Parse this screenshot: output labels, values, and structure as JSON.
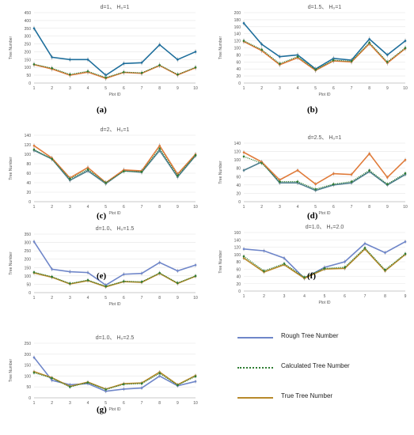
{
  "panels": [
    {
      "id": "a",
      "label": "(a)",
      "title": "d=1、 H₀=1",
      "ylabel": "Tree Number",
      "xlabel": "Plot ID",
      "yticks": [
        0,
        50,
        100,
        150,
        200,
        250,
        300,
        350,
        400,
        450
      ],
      "ylim": [
        0,
        450
      ],
      "show_rough": true,
      "rough": [
        350,
        165,
        150,
        150,
        50,
        125,
        130,
        245,
        150,
        200
      ],
      "calc": [
        120,
        95,
        55,
        75,
        35,
        70,
        65,
        115,
        55,
        100
      ],
      "true": [
        118,
        90,
        50,
        70,
        30,
        68,
        62,
        112,
        52,
        98
      ]
    },
    {
      "id": "b",
      "label": "(b)",
      "title": "d=1.5、 H₀=1",
      "ylabel": "Tree Number",
      "xlabel": "Plot ID",
      "yticks": [
        0,
        20,
        40,
        60,
        80,
        100,
        120,
        140,
        160,
        180,
        200
      ],
      "ylim": [
        0,
        200
      ],
      "show_rough": true,
      "rough": [
        170,
        110,
        75,
        80,
        40,
        70,
        65,
        125,
        80,
        120
      ],
      "calc": [
        120,
        95,
        55,
        75,
        38,
        65,
        62,
        115,
        60,
        100
      ],
      "true": [
        118,
        92,
        52,
        72,
        36,
        63,
        60,
        112,
        57,
        98
      ]
    },
    {
      "id": "c",
      "label": "(c)",
      "title": "d=2、 H₀=1",
      "ylabel": "Tree Number",
      "xlabel": "Plot ID",
      "yticks": [
        0,
        20,
        40,
        60,
        80,
        100,
        120,
        140
      ],
      "ylim": [
        0,
        140
      ],
      "show_rough": true,
      "rough": [
        108,
        90,
        45,
        65,
        38,
        65,
        62,
        108,
        52,
        97
      ],
      "calc": [
        110,
        90,
        48,
        68,
        40,
        64,
        63,
        112,
        55,
        98
      ],
      "true": [
        118,
        92,
        50,
        72,
        40,
        67,
        65,
        118,
        58,
        100
      ]
    },
    {
      "id": "d",
      "label": "(d)",
      "title": "d=2.5、 H₀=1",
      "ylabel": "Tree Number",
      "xlabel": "Plot ID",
      "yticks": [
        0,
        20,
        40,
        60,
        80,
        100,
        120,
        140
      ],
      "ylim": [
        0,
        140
      ],
      "show_rough": true,
      "rough": [
        75,
        95,
        45,
        45,
        27,
        40,
        45,
        72,
        40,
        65
      ],
      "calc": [
        108,
        92,
        48,
        48,
        30,
        42,
        48,
        75,
        42,
        68
      ],
      "true": [
        118,
        95,
        52,
        75,
        42,
        67,
        65,
        115,
        58,
        100
      ]
    },
    {
      "id": "e",
      "label": "(e)",
      "title": "d=1.0、 H₀=1.5",
      "ylabel": "Tree Number",
      "xlabel": "Plot ID",
      "yticks": [
        0,
        50,
        100,
        150,
        200,
        250,
        300,
        350
      ],
      "ylim": [
        0,
        350
      ],
      "show_rough": true,
      "rough": [
        305,
        140,
        125,
        120,
        45,
        110,
        115,
        180,
        130,
        165
      ],
      "calc": [
        122,
        95,
        55,
        75,
        38,
        68,
        65,
        118,
        58,
        100
      ],
      "true": [
        118,
        92,
        52,
        72,
        35,
        66,
        62,
        115,
        55,
        98
      ]
    },
    {
      "id": "f",
      "label": "(f)",
      "title": "d=1.0、 H₀=2.0",
      "ylabel": "Tree Number",
      "xlabel": "Plot ID",
      "yticks": [
        0,
        20,
        40,
        60,
        80,
        100,
        120,
        140,
        160
      ],
      "ylim": [
        0,
        160
      ],
      "show_rough": true,
      "rough": [
        115,
        110,
        90,
        35,
        65,
        80,
        130,
        105,
        135
      ],
      "calc": [
        95,
        55,
        75,
        38,
        62,
        65,
        118,
        58,
        102
      ],
      "true": [
        90,
        52,
        72,
        35,
        60,
        62,
        115,
        55,
        100
      ]
    },
    {
      "id": "g",
      "label": "(g)",
      "title": "d=1.0、 H₀=2.5",
      "ylabel": "Tree Number",
      "xlabel": "Plot ID",
      "yticks": [
        0,
        50,
        100,
        150,
        200,
        250
      ],
      "ylim": [
        0,
        250
      ],
      "show_rough": true,
      "rough": [
        185,
        80,
        60,
        65,
        30,
        40,
        45,
        100,
        55,
        75
      ],
      "calc": [
        115,
        90,
        50,
        70,
        38,
        62,
        65,
        112,
        58,
        98
      ],
      "true": [
        120,
        92,
        52,
        72,
        40,
        65,
        68,
        118,
        60,
        102
      ]
    }
  ],
  "legend": {
    "rough": "Rough Tree Number",
    "calc": "Calculated Tree Number",
    "true": "True Tree Number"
  },
  "colors": {
    "rough_top": "#1f6f9c",
    "rough_bottom": "#6f86c9",
    "calc": "#2e7d32",
    "true_top": "#e07b3a",
    "true_bottom": "#b8892a",
    "axis": "#bbbbbb",
    "text": "#555555"
  }
}
